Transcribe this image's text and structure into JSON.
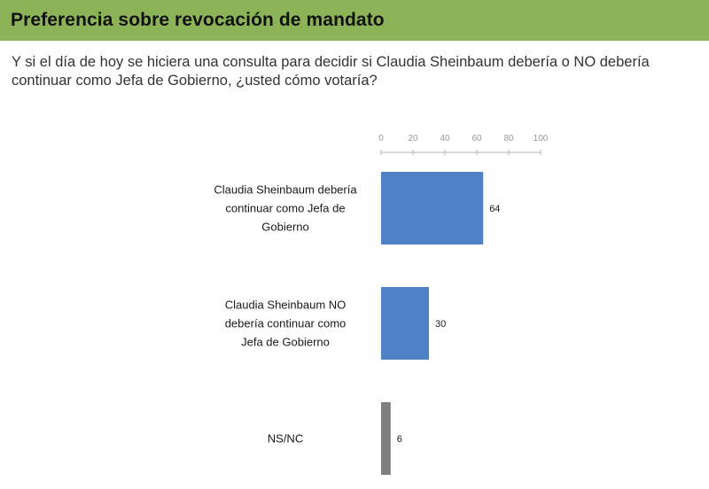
{
  "header": {
    "title": "Preferencia sobre revocación de mandato"
  },
  "question": "Y si el día de hoy se hiciera una consulta para decidir si Claudia Sheinbaum debería o NO debería continuar como Jefa de Gobierno, ¿usted cómo votaría?",
  "colors": {
    "header_bg": "#8cb357",
    "bar_primary": "#4f81c7",
    "bar_other": "#7f7f7f"
  },
  "chart_data": {
    "type": "bar",
    "orientation": "horizontal",
    "categories": [
      [
        "Claudia Sheinbaum debería",
        "continuar como Jefa de",
        "Gobierno"
      ],
      [
        "Claudia Sheinbaum NO",
        "debería continuar como",
        "Jefa de Gobierno"
      ],
      [
        "NS/NC"
      ]
    ],
    "values": [
      64,
      30,
      6
    ],
    "bar_colors": [
      "#4f81c7",
      "#4f81c7",
      "#7f7f7f"
    ],
    "xlim": [
      0,
      100
    ],
    "xticks": [
      0,
      20,
      40,
      60,
      80,
      100
    ],
    "axis_position": "top",
    "grid": false,
    "title": "",
    "xlabel": "",
    "ylabel": ""
  }
}
